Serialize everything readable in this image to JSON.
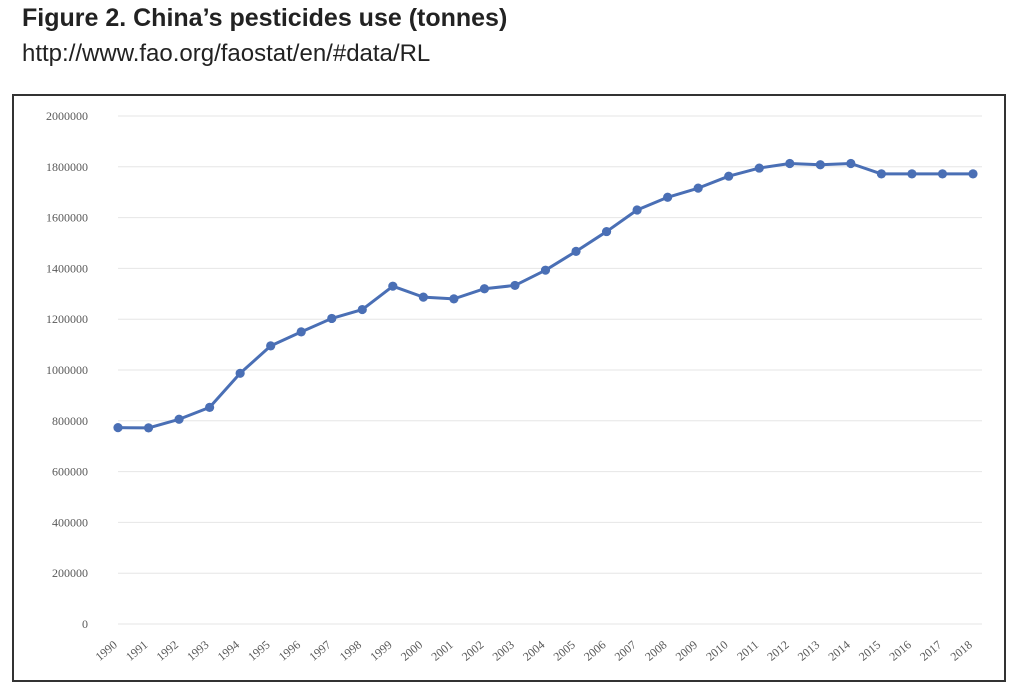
{
  "figure": {
    "title": "Figure 2. China’s pesticides use (tonnes)",
    "source": "http://www.fao.org/faostat/en/#data/RL"
  },
  "chart_data": {
    "type": "line",
    "title": "",
    "xlabel": "",
    "ylabel": "",
    "categories": [
      "1990",
      "1991",
      "1992",
      "1993",
      "1994",
      "1995",
      "1996",
      "1997",
      "1998",
      "1999",
      "2000",
      "2001",
      "2002",
      "2003",
      "2004",
      "2005",
      "2006",
      "2007",
      "2008",
      "2009",
      "2010",
      "2011",
      "2012",
      "2013",
      "2014",
      "2015",
      "2016",
      "2017",
      "2018"
    ],
    "series": [
      {
        "values": [
          773000,
          772000,
          806000,
          853000,
          987000,
          1095000,
          1150000,
          1203000,
          1238000,
          1330000,
          1287000,
          1280000,
          1320000,
          1333000,
          1393000,
          1467000,
          1545000,
          1630000,
          1680000,
          1716000,
          1763000,
          1795000,
          1813000,
          1808000,
          1813000,
          1772000,
          1772000,
          1772000,
          1772000
        ],
        "color": "#4a6fb5"
      }
    ],
    "y_ticks": [
      "0",
      "200000",
      "400000",
      "600000",
      "800000",
      "1000000",
      "1200000",
      "1400000",
      "1600000",
      "1800000",
      "2000000"
    ],
    "ylim": [
      0,
      2000000
    ],
    "grid": "horizontal",
    "legend": "none"
  }
}
